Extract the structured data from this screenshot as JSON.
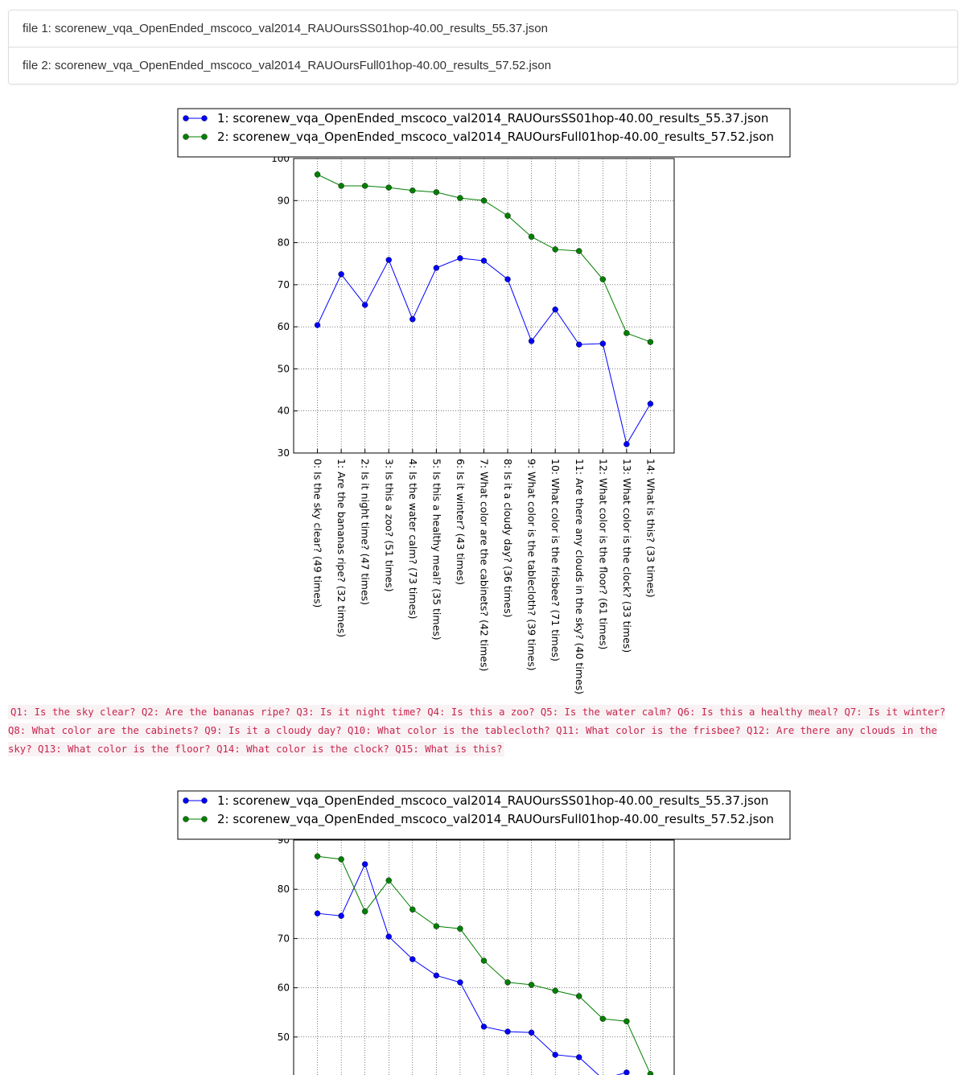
{
  "files": [
    "file 1: scorenew_vqa_OpenEnded_mscoco_val2014_RAUOursSS01hop-40.00_results_55.37.json",
    "file 2: scorenew_vqa_OpenEnded_mscoco_val2014_RAUOursFull01hop-40.00_results_57.52.json"
  ],
  "chart_data": [
    {
      "type": "line",
      "categories": [
        "0: Is the sky clear? (49 times)",
        "1: Are the bananas ripe? (32 times)",
        "2: Is it night time? (47 times)",
        "3: Is this a zoo? (51 times)",
        "4: Is the water calm? (73 times)",
        "5: Is this a healthy meal? (35 times)",
        "6: Is it winter? (43 times)",
        "7: What color are the cabinets? (42 times)",
        "8: Is it a cloudy day? (36 times)",
        "9: What color is the tablecloth? (39 times)",
        "10: What color is the frisbee? (71 times)",
        "11: Are there any clouds in the sky? (40 times)",
        "12: What color is the floor? (61 times)",
        "13: What color is the clock? (33 times)",
        "14: What is this? (33 times)"
      ],
      "series": [
        {
          "name": "1: scorenew_vqa_OpenEnded_mscoco_val2014_RAUOursSS01hop-40.00_results_55.37.json",
          "color": "#0000ff",
          "values": [
            60.4,
            72.5,
            65.2,
            75.9,
            61.8,
            74.0,
            76.3,
            75.7,
            71.3,
            56.6,
            64.1,
            55.8,
            56.0,
            32.1,
            41.7
          ]
        },
        {
          "name": "2: scorenew_vqa_OpenEnded_mscoco_val2014_RAUOursFull01hop-40.00_results_57.52.json",
          "color": "#007f00",
          "values": [
            96.2,
            93.5,
            93.5,
            93.1,
            92.4,
            92.0,
            90.6,
            90.0,
            86.4,
            81.4,
            78.4,
            78.0,
            71.3,
            58.5,
            56.4
          ]
        }
      ],
      "ylim": [
        30,
        100
      ],
      "yticks": [
        30,
        40,
        50,
        60,
        70,
        80,
        90,
        100
      ],
      "grid": true,
      "legend": "top"
    },
    {
      "type": "line",
      "categories": [
        null,
        null,
        null,
        null,
        null,
        null,
        null,
        null,
        null,
        null,
        null,
        null,
        null,
        null,
        null
      ],
      "series": [
        {
          "name": "1: scorenew_vqa_OpenEnded_mscoco_val2014_RAUOursSS01hop-40.00_results_55.37.json",
          "color": "#0000ff",
          "values": [
            75.1,
            74.6,
            85.1,
            70.4,
            65.8,
            62.5,
            61.1,
            52.1,
            51.1,
            50.9,
            46.4,
            45.9,
            41.5,
            42.8,
            null
          ]
        },
        {
          "name": "2: scorenew_vqa_OpenEnded_mscoco_val2014_RAUOursFull01hop-40.00_results_57.52.json",
          "color": "#007f00",
          "values": [
            86.7,
            86.1,
            75.5,
            81.8,
            75.9,
            72.5,
            72.0,
            65.5,
            61.1,
            60.6,
            59.4,
            58.3,
            53.7,
            53.2,
            42.5
          ]
        }
      ],
      "ylim": [
        40,
        90
      ],
      "yticks": [
        50,
        60,
        70,
        80,
        90
      ],
      "grid": true,
      "legend": "top"
    }
  ],
  "questions": "Q1: Is the sky clear? Q2: Are the bananas ripe? Q3: Is it night time? Q4: Is this a zoo? Q5: Is the water calm? Q6: Is this a healthy meal? Q7: Is it winter? Q8: What color are the cabinets? Q9: Is it a cloudy day? Q10: What color is the tablecloth? Q11: What color is the frisbee? Q12: Are there any clouds in the sky? Q13: What color is the floor? Q14: What color is the clock? Q15: What is this?"
}
